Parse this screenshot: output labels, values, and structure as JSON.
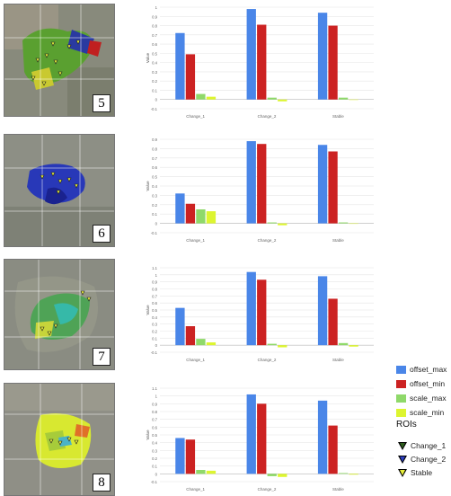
{
  "legend": {
    "series": [
      {
        "name": "offset_max",
        "color": "#4a86e8"
      },
      {
        "name": "offset_min",
        "color": "#cc2222"
      },
      {
        "name": "scale_max",
        "color": "#8fd96a"
      },
      {
        "name": "scale_min",
        "color": "#ddf530"
      }
    ],
    "roi_title": "ROIs",
    "rois": [
      {
        "name": "Change_1",
        "color": "#2e5e1e"
      },
      {
        "name": "Change_2",
        "color": "#2e3fbf"
      },
      {
        "name": "Stable",
        "color": "#e8ef3a"
      }
    ]
  },
  "panels": [
    {
      "number": "5"
    },
    {
      "number": "6"
    },
    {
      "number": "7"
    },
    {
      "number": "8"
    }
  ],
  "chart_data": [
    {
      "type": "bar",
      "categories": [
        "Change_1",
        "Change_2",
        "Stable"
      ],
      "ylabel": "Value",
      "ylim": [
        -0.1,
        1.0
      ],
      "yticks": [
        "-0.1",
        "0",
        "0.1",
        "0.2",
        "0.3",
        "0.4",
        "0.5",
        "0.6",
        "0.7",
        "0.8",
        "0.9",
        "1"
      ],
      "series": [
        {
          "name": "offset_max",
          "values": [
            0.72,
            0.98,
            0.94
          ]
        },
        {
          "name": "offset_min",
          "values": [
            0.49,
            0.81,
            0.8
          ]
        },
        {
          "name": "scale_max",
          "values": [
            0.06,
            0.02,
            0.02
          ]
        },
        {
          "name": "scale_min",
          "values": [
            0.03,
            -0.02,
            0.0
          ]
        }
      ]
    },
    {
      "type": "bar",
      "categories": [
        "Change_1",
        "Change_2",
        "Stable"
      ],
      "ylabel": "Value",
      "ylim": [
        -0.1,
        0.9
      ],
      "yticks": [
        "-0.1",
        "0",
        "0.1",
        "0.2",
        "0.3",
        "0.4",
        "0.5",
        "0.6",
        "0.7",
        "0.8",
        "0.9"
      ],
      "series": [
        {
          "name": "offset_max",
          "values": [
            0.32,
            0.88,
            0.84
          ]
        },
        {
          "name": "offset_min",
          "values": [
            0.21,
            0.85,
            0.77
          ]
        },
        {
          "name": "scale_max",
          "values": [
            0.15,
            0.01,
            0.01
          ]
        },
        {
          "name": "scale_min",
          "values": [
            0.13,
            -0.02,
            0.0
          ]
        }
      ]
    },
    {
      "type": "bar",
      "categories": [
        "Change_1",
        "Change_2",
        "Stable"
      ],
      "ylabel": "Value",
      "ylim": [
        -0.1,
        1.1
      ],
      "yticks": [
        "-0.1",
        "0",
        "0.1",
        "0.2",
        "0.3",
        "0.4",
        "0.5",
        "0.6",
        "0.7",
        "0.8",
        "0.9",
        "1",
        "1.1"
      ],
      "series": [
        {
          "name": "offset_max",
          "values": [
            0.53,
            1.04,
            0.98
          ]
        },
        {
          "name": "offset_min",
          "values": [
            0.27,
            0.93,
            0.66
          ]
        },
        {
          "name": "scale_max",
          "values": [
            0.09,
            0.02,
            0.03
          ]
        },
        {
          "name": "scale_min",
          "values": [
            0.04,
            -0.03,
            -0.02
          ]
        }
      ]
    },
    {
      "type": "bar",
      "categories": [
        "Change_1",
        "Change_2",
        "Stable"
      ],
      "ylabel": "Value",
      "ylim": [
        -0.1,
        1.1
      ],
      "yticks": [
        "-0.1",
        "0",
        "0.1",
        "0.2",
        "0.3",
        "0.4",
        "0.5",
        "0.6",
        "0.7",
        "0.8",
        "0.9",
        "1",
        "1.1"
      ],
      "series": [
        {
          "name": "offset_max",
          "values": [
            0.46,
            1.02,
            0.94
          ]
        },
        {
          "name": "offset_min",
          "values": [
            0.44,
            0.9,
            0.62
          ]
        },
        {
          "name": "scale_max",
          "values": [
            0.05,
            -0.03,
            0.01
          ]
        },
        {
          "name": "scale_min",
          "values": [
            0.04,
            -0.04,
            -0.01
          ]
        }
      ]
    }
  ]
}
